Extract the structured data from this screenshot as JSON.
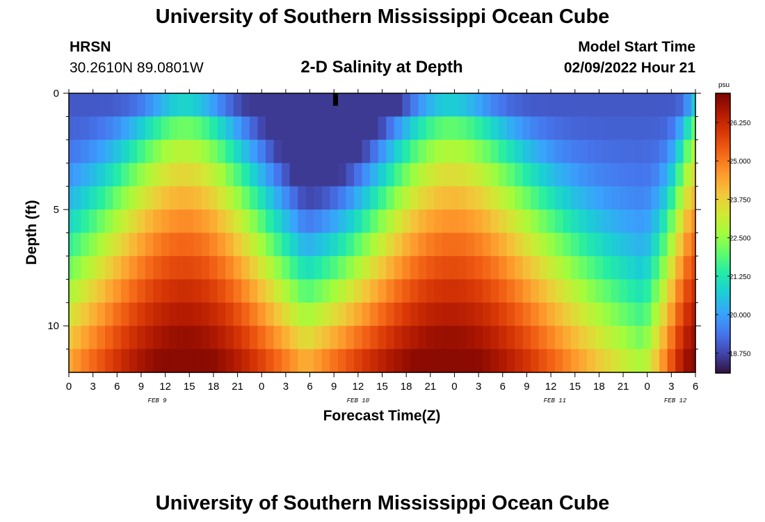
{
  "header": {
    "title": "University of Southern Mississippi Ocean Cube",
    "station": "HRSN",
    "coordinates": "30.2610N  89.0801W",
    "plot_title": "2-D Salinity at Depth",
    "model_start_label": "Model Start Time",
    "model_start_value": "02/09/2022 Hour 21"
  },
  "footer": {
    "title": "University of Southern Mississippi Ocean Cube"
  },
  "chart_data": {
    "type": "heatmap",
    "title": "2-D Salinity at Depth",
    "xlabel": "Forecast Time(Z)",
    "ylabel": "Depth (ft)",
    "x_range_hours": [
      0,
      78
    ],
    "x_tick_labels": [
      "0",
      "3",
      "6",
      "9",
      "12",
      "15",
      "18",
      "21",
      "0",
      "3",
      "6",
      "9",
      "12",
      "15",
      "18",
      "21",
      "0",
      "3",
      "6",
      "9",
      "12",
      "15",
      "18",
      "21",
      "0",
      "3",
      "6"
    ],
    "date_labels": [
      {
        "text": "FEB 9",
        "hour": 11
      },
      {
        "text": "FEB 10",
        "hour": 36
      },
      {
        "text": "FEB 11",
        "hour": 60.5
      },
      {
        "text": "FEB 12",
        "hour": 75.5
      }
    ],
    "y_range_ft": [
      0,
      12
    ],
    "y_tick_labels": [
      "0",
      "5",
      "10"
    ],
    "y_tick_values": [
      0,
      5,
      10
    ],
    "colorbar": {
      "unit": "psu",
      "min": 18.1,
      "max": 27.2,
      "tick_labels": [
        "26.250",
        "25.000",
        "23.750",
        "22.500",
        "21.250",
        "20.000",
        "18.750"
      ],
      "tick_values": [
        26.25,
        25.0,
        23.75,
        22.5,
        21.25,
        20.0,
        18.75
      ]
    },
    "field_model": {
      "depth_levels": 12,
      "time_steps": 79,
      "fresh_surface_psu": 19.0,
      "salty_bottom_psu": 27.0,
      "pulses": [
        {
          "center_hour": 14.5,
          "peak_psu": 26.6,
          "width_bottom_h": 24,
          "width_top_h": 6
        },
        {
          "center_hour": 47,
          "peak_psu": 27.0,
          "width_bottom_h": 28,
          "width_top_h": 7
        },
        {
          "center_hour": 78.5,
          "peak_psu": 26.2,
          "width_bottom_h": 8,
          "width_top_h": 2
        }
      ],
      "fresh_lens": {
        "center_hour": 33,
        "min_psu": 18.6
      }
    }
  }
}
